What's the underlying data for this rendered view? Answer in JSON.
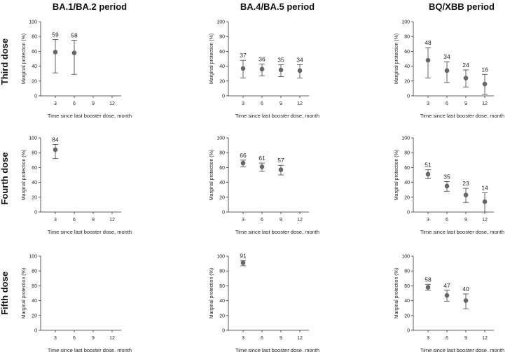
{
  "figure": {
    "column_titles": [
      "BA.1/BA.2 period",
      "BA.4/BA.5 period",
      "BQ/XBB period"
    ],
    "row_titles": [
      "Third dose",
      "Fourth dose",
      "Fifth dose"
    ]
  },
  "chart_data": [
    {
      "type": "scatter",
      "panel": "third-dose-ba1-ba2",
      "row": 0,
      "col": 0,
      "ylabel": "Marginal protection (%)",
      "xlabel": "Time since last booster dose, month",
      "x_ticks": [
        3,
        6,
        9,
        12
      ],
      "y_ticks": [
        0,
        20,
        40,
        60,
        80,
        100
      ],
      "ylim": [
        0,
        100
      ],
      "points": [
        {
          "x": 3,
          "value": 59,
          "lower": 31,
          "upper": 76,
          "label": "59"
        },
        {
          "x": 6,
          "value": 58,
          "lower": 29,
          "upper": 75,
          "label": "58"
        }
      ]
    },
    {
      "type": "scatter",
      "panel": "third-dose-ba4-ba5",
      "row": 0,
      "col": 1,
      "ylabel": "Marginal protection (%)",
      "xlabel": "Time since last booster dose, month",
      "x_ticks": [
        3,
        6,
        9,
        12
      ],
      "y_ticks": [
        0,
        20,
        40,
        60,
        80,
        100
      ],
      "ylim": [
        0,
        100
      ],
      "points": [
        {
          "x": 3,
          "value": 37,
          "lower": 24,
          "upper": 48,
          "label": "37"
        },
        {
          "x": 6,
          "value": 36,
          "lower": 27,
          "upper": 43,
          "label": "36"
        },
        {
          "x": 9,
          "value": 35,
          "lower": 26,
          "upper": 42,
          "label": "35"
        },
        {
          "x": 12,
          "value": 34,
          "lower": 24,
          "upper": 42,
          "label": "34"
        }
      ]
    },
    {
      "type": "scatter",
      "panel": "third-dose-bq-xbb",
      "row": 0,
      "col": 2,
      "ylabel": "Marginal protection (%)",
      "xlabel": "Time since last booster dose, month",
      "x_ticks": [
        3,
        6,
        9,
        12
      ],
      "y_ticks": [
        0,
        20,
        40,
        60,
        80,
        100
      ],
      "ylim": [
        0,
        100
      ],
      "points": [
        {
          "x": 3,
          "value": 48,
          "lower": 24,
          "upper": 65,
          "label": "48"
        },
        {
          "x": 6,
          "value": 34,
          "lower": 18,
          "upper": 46,
          "label": "34"
        },
        {
          "x": 9,
          "value": 24,
          "lower": 12,
          "upper": 35,
          "label": "24"
        },
        {
          "x": 12,
          "value": 16,
          "lower": 2,
          "upper": 29,
          "label": "16"
        }
      ]
    },
    {
      "type": "scatter",
      "panel": "fourth-dose-ba1-ba2",
      "row": 1,
      "col": 0,
      "ylabel": "Marginal protection (%)",
      "xlabel": "Time since last booster dose, month",
      "x_ticks": [
        3,
        6,
        9,
        12
      ],
      "y_ticks": [
        0,
        20,
        40,
        60,
        80,
        100
      ],
      "ylim": [
        0,
        100
      ],
      "points": [
        {
          "x": 3,
          "value": 84,
          "lower": 72,
          "upper": 91,
          "label": "84"
        }
      ]
    },
    {
      "type": "scatter",
      "panel": "fourth-dose-ba4-ba5",
      "row": 1,
      "col": 1,
      "ylabel": "Marginal protection (%)",
      "xlabel": "Time since last booster dose, month",
      "x_ticks": [
        3,
        6,
        9,
        12
      ],
      "y_ticks": [
        0,
        20,
        40,
        60,
        80,
        100
      ],
      "ylim": [
        0,
        100
      ],
      "points": [
        {
          "x": 3,
          "value": 66,
          "lower": 61,
          "upper": 70,
          "label": "66"
        },
        {
          "x": 6,
          "value": 61,
          "lower": 55,
          "upper": 66,
          "label": "61"
        },
        {
          "x": 9,
          "value": 57,
          "lower": 50,
          "upper": 63,
          "label": "57"
        }
      ]
    },
    {
      "type": "scatter",
      "panel": "fourth-dose-bq-xbb",
      "row": 1,
      "col": 2,
      "ylabel": "Marginal protection (%)",
      "xlabel": "Time since last booster dose, month",
      "x_ticks": [
        3,
        6,
        9,
        12
      ],
      "y_ticks": [
        0,
        20,
        40,
        60,
        80,
        100
      ],
      "ylim": [
        0,
        100
      ],
      "points": [
        {
          "x": 3,
          "value": 51,
          "lower": 45,
          "upper": 57,
          "label": "51"
        },
        {
          "x": 6,
          "value": 35,
          "lower": 28,
          "upper": 41,
          "label": "35"
        },
        {
          "x": 9,
          "value": 23,
          "lower": 13,
          "upper": 32,
          "label": "23"
        },
        {
          "x": 12,
          "value": 14,
          "lower": 0,
          "upper": 26,
          "label": "14"
        }
      ]
    },
    {
      "type": "scatter",
      "panel": "fifth-dose-ba1-ba2",
      "row": 2,
      "col": 0,
      "ylabel": "Marginal protection (%)",
      "xlabel": "Time since last booster dose, month",
      "x_ticks": [
        3,
        6,
        9,
        12
      ],
      "y_ticks": [
        0,
        20,
        40,
        60,
        80,
        100
      ],
      "ylim": [
        0,
        100
      ],
      "points": []
    },
    {
      "type": "scatter",
      "panel": "fifth-dose-ba4-ba5",
      "row": 2,
      "col": 1,
      "ylabel": "Marginal protection (%)",
      "xlabel": "Time since last booster dose, month",
      "x_ticks": [
        3,
        6,
        9,
        12
      ],
      "y_ticks": [
        0,
        20,
        40,
        60,
        80,
        100
      ],
      "ylim": [
        0,
        100
      ],
      "points": [
        {
          "x": 3,
          "value": 91,
          "lower": 87,
          "upper": 94,
          "label": "91"
        }
      ]
    },
    {
      "type": "scatter",
      "panel": "fifth-dose-bq-xbb",
      "row": 2,
      "col": 2,
      "ylabel": "Marginal protection (%)",
      "xlabel": "Time since last booster dose, month",
      "x_ticks": [
        3,
        6,
        9,
        12
      ],
      "y_ticks": [
        0,
        20,
        40,
        60,
        80,
        100
      ],
      "ylim": [
        0,
        100
      ],
      "points": [
        {
          "x": 3,
          "value": 58,
          "lower": 54,
          "upper": 62,
          "label": "58"
        },
        {
          "x": 6,
          "value": 47,
          "lower": 39,
          "upper": 54,
          "label": "47"
        },
        {
          "x": 9,
          "value": 40,
          "lower": 29,
          "upper": 49,
          "label": "40"
        }
      ]
    }
  ]
}
